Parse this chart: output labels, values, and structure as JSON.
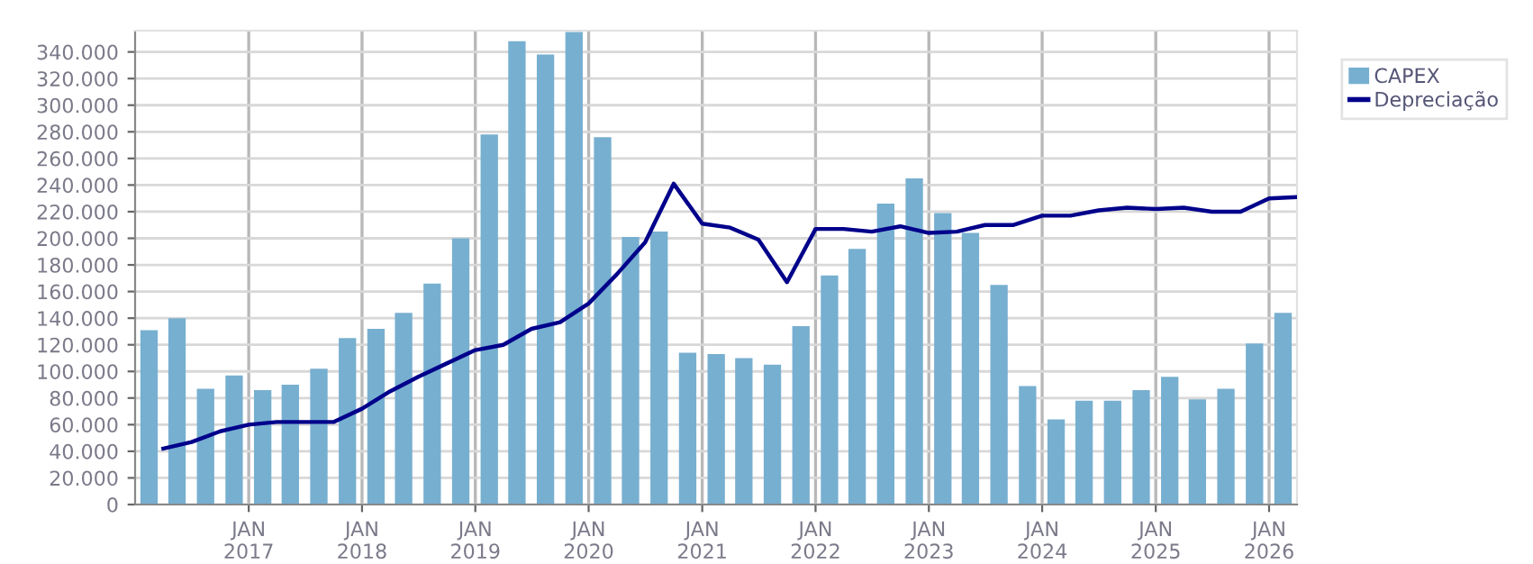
{
  "chart_data": {
    "type": "bar",
    "series": [
      {
        "name": "CAPEX",
        "color": "#77afd0",
        "x": [
          "2016-02-15",
          "2016-05-15",
          "2016-08-15",
          "2016-11-15",
          "2017-02-15",
          "2017-05-15",
          "2017-08-15",
          "2017-11-15",
          "2018-02-15",
          "2018-05-15",
          "2018-08-15",
          "2018-11-15",
          "2019-02-15",
          "2019-05-15",
          "2019-08-15",
          "2019-11-15",
          "2020-02-15",
          "2020-05-15",
          "2020-08-15",
          "2020-11-15",
          "2021-02-15",
          "2021-05-15",
          "2021-08-15",
          "2021-11-15",
          "2022-02-15",
          "2022-05-15",
          "2022-08-15",
          "2022-11-15",
          "2023-02-15",
          "2023-05-15",
          "2023-08-15",
          "2023-11-15",
          "2024-02-15",
          "2024-05-15",
          "2024-08-15",
          "2024-11-15",
          "2025-02-15",
          "2025-05-15",
          "2025-08-15",
          "2025-11-15",
          "2026-02-15"
        ],
        "values": [
          131000,
          140000,
          87000,
          97000,
          86000,
          90000,
          102000,
          125000,
          132000,
          144000,
          166000,
          200000,
          278000,
          348000,
          338000,
          355000,
          276000,
          201000,
          205000,
          114000,
          113000,
          110000,
          105000,
          134000,
          172000,
          192000,
          226000,
          245000,
          219000,
          204000,
          165000,
          89000,
          64000,
          78000,
          78000,
          86000,
          96000,
          79000,
          87000,
          121000,
          144000
        ]
      },
      {
        "name": "Depreciação",
        "type": "line",
        "color": "#00008b",
        "x": [
          "2016-04-01",
          "2016-07-01",
          "2016-10-01",
          "2017-01-01",
          "2017-04-01",
          "2017-07-01",
          "2017-10-01",
          "2018-01-01",
          "2018-04-01",
          "2018-07-01",
          "2018-10-01",
          "2019-01-01",
          "2019-04-01",
          "2019-07-01",
          "2019-10-01",
          "2020-01-01",
          "2020-04-01",
          "2020-07-01",
          "2020-10-01",
          "2021-01-01",
          "2021-04-01",
          "2021-07-01",
          "2021-10-01",
          "2022-01-01",
          "2022-04-01",
          "2022-07-01",
          "2022-10-01",
          "2023-01-01",
          "2023-04-01",
          "2023-07-01",
          "2023-10-01",
          "2024-01-01",
          "2024-04-01",
          "2024-07-01",
          "2024-10-01",
          "2025-01-01",
          "2025-04-01",
          "2025-07-01",
          "2025-10-01",
          "2026-01-01",
          "2026-04-01"
        ],
        "values": [
          42000,
          47000,
          55000,
          60000,
          62000,
          62000,
          62000,
          72000,
          85000,
          96000,
          106000,
          116000,
          120000,
          132000,
          137000,
          151000,
          173000,
          197000,
          241000,
          211000,
          208000,
          199000,
          167000,
          207000,
          207000,
          205000,
          209000,
          204000,
          205000,
          210000,
          210000,
          217000,
          217000,
          221000,
          223000,
          222000,
          223000,
          220000,
          220000,
          230000,
          231000
        ]
      }
    ],
    "xlim": [
      "2016-01-01",
      "2026-04-01"
    ],
    "xticks": [
      {
        "value": "2017-01-01",
        "label": "JAN\n2017"
      },
      {
        "value": "2018-01-01",
        "label": "JAN\n2018"
      },
      {
        "value": "2019-01-01",
        "label": "JAN\n2019"
      },
      {
        "value": "2020-01-01",
        "label": "JAN\n2020"
      },
      {
        "value": "2021-01-01",
        "label": "JAN\n2021"
      },
      {
        "value": "2022-01-01",
        "label": "JAN\n2022"
      },
      {
        "value": "2023-01-01",
        "label": "JAN\n2023"
      },
      {
        "value": "2024-01-01",
        "label": "JAN\n2024"
      },
      {
        "value": "2025-01-01",
        "label": "JAN\n2025"
      },
      {
        "value": "2026-01-01",
        "label": "JAN\n2026"
      }
    ],
    "ylim": [
      0,
      356000
    ],
    "yticks": [
      {
        "value": 0,
        "label": "0"
      },
      {
        "value": 20000,
        "label": "20.000"
      },
      {
        "value": 40000,
        "label": "40.000"
      },
      {
        "value": 60000,
        "label": "60.000"
      },
      {
        "value": 80000,
        "label": "80.000"
      },
      {
        "value": 100000,
        "label": "100.000"
      },
      {
        "value": 120000,
        "label": "120.000"
      },
      {
        "value": 140000,
        "label": "140.000"
      },
      {
        "value": 160000,
        "label": "160.000"
      },
      {
        "value": 180000,
        "label": "180.000"
      },
      {
        "value": 200000,
        "label": "200.000"
      },
      {
        "value": 220000,
        "label": "220.000"
      },
      {
        "value": 240000,
        "label": "240.000"
      },
      {
        "value": 260000,
        "label": "260.000"
      },
      {
        "value": 280000,
        "label": "280.000"
      },
      {
        "value": 300000,
        "label": "300.000"
      },
      {
        "value": 320000,
        "label": "320.000"
      },
      {
        "value": 340000,
        "label": "340.000"
      }
    ],
    "grid": true,
    "legend": "top right",
    "marker": "none",
    "line_style": "solid"
  }
}
